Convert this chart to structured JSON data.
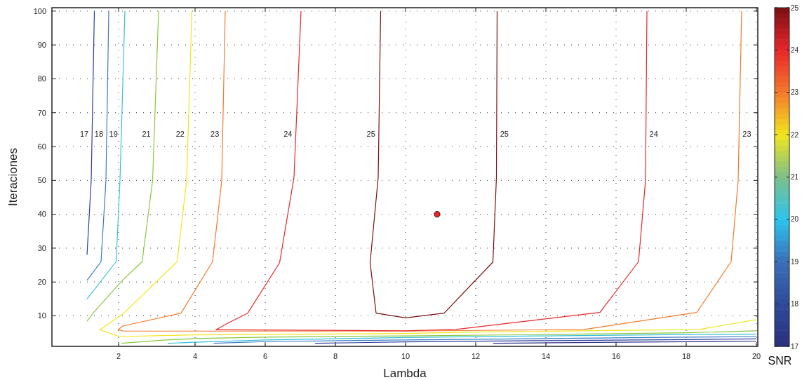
{
  "chart_data": {
    "type": "line",
    "xlabel": "Lambda",
    "ylabel": "Iteraciones",
    "clabel": "SNR",
    "xlim": [
      -0.08,
      20.04
    ],
    "ylim": [
      1,
      101
    ],
    "xticks": [
      {
        "value": 1.82,
        "label": "2"
      },
      4,
      6,
      8,
      10,
      12,
      14,
      16,
      18,
      20
    ],
    "yticks": [
      10,
      20,
      30,
      40,
      50,
      60,
      70,
      80,
      90,
      100
    ],
    "clim": [
      17,
      25
    ],
    "cticks": [
      17,
      18,
      19,
      20,
      21,
      22,
      23,
      24,
      25
    ],
    "grid": true,
    "line_style": "solid",
    "marker": "none",
    "series": [
      {
        "name": "17",
        "color": "#2b3f9b",
        "x": [
          1.13,
          1.04,
          0.92,
          null,
          7.42,
          10,
          14,
          18,
          20
        ],
        "values": [
          100,
          50,
          28,
          null,
          1.9,
          2.3,
          2.7,
          3.0,
          3.2
        ]
      },
      {
        "color": "#2e2f86",
        "x": [
          12.5,
          16,
          20
        ],
        "values": [
          1.9,
          2.2,
          2.5
        ]
      },
      {
        "name": "18",
        "color": "#3d79c4",
        "x": [
          1.54,
          1.46,
          1.32,
          0.92,
          null,
          4.53,
          6,
          10,
          14,
          18,
          20
        ],
        "values": [
          100,
          50,
          26,
          20.5,
          null,
          1.9,
          2.4,
          2.9,
          3.3,
          3.7,
          3.9
        ]
      },
      {
        "name": "19",
        "color": "#39c0d6",
        "x": [
          2.0,
          1.86,
          1.75,
          0.92,
          null,
          3.22,
          4,
          6,
          10,
          14,
          18,
          20
        ],
        "values": [
          100,
          50,
          26,
          15,
          null,
          1.9,
          2.2,
          2.9,
          3.6,
          4.1,
          4.5,
          4.6
        ]
      },
      {
        "name": "21",
        "color": "#8cc63f",
        "x": [
          2.96,
          2.79,
          2.49,
          1.93,
          1.1,
          0.92,
          null,
          1.9,
          3,
          4,
          6,
          10,
          14,
          18,
          20
        ],
        "values": [
          100,
          50,
          26,
          20.5,
          10.9,
          8.4,
          null,
          1.9,
          2.8,
          3.3,
          3.7,
          4.1,
          4.5,
          5.0,
          5.6
        ]
      },
      {
        "name": "22",
        "color": "#f2e51d",
        "x": [
          3.91,
          3.76,
          3.49,
          1.97,
          1.29,
          1.84,
          4,
          10,
          12,
          18.37,
          20
        ],
        "values": [
          100,
          50,
          26,
          10.8,
          5.9,
          3.9,
          4.4,
          4.8,
          5.2,
          6.0,
          8.9
        ]
      },
      {
        "name": "23",
        "color": "#f47a2b",
        "x": [
          4.86,
          4.76,
          4.5,
          3.6,
          1.94,
          1.81,
          1.97,
          10,
          15.1,
          18.3,
          19.28,
          19.48,
          19.58
        ],
        "values": [
          100,
          50,
          26,
          10.8,
          7.0,
          5.9,
          5.5,
          5.5,
          6.0,
          11,
          26,
          50,
          100
        ]
      },
      {
        "name": "24",
        "color": "#e8262a",
        "x": [
          7.02,
          6.82,
          6.41,
          5.5,
          4.94,
          4.6,
          4.7,
          10,
          11.44,
          15.54,
          16.64,
          16.84,
          16.88
        ],
        "values": [
          100,
          50.9,
          25.7,
          10.8,
          7.9,
          5.9,
          5.9,
          5.6,
          6.0,
          11,
          26,
          50,
          100
        ]
      },
      {
        "name": "25",
        "color": "#7b0f12",
        "x": [
          9.29,
          9.22,
          8.99,
          9.16,
          10.0,
          11.1,
          12.49,
          12.59,
          12.61
        ],
        "values": [
          100,
          50.9,
          25.7,
          10.8,
          9.4,
          10.8,
          25.9,
          50.9,
          100
        ]
      },
      {
        "type": "scatter",
        "marker": "circle",
        "color": "#e8262a",
        "x": [
          10.9
        ],
        "values": [
          40
        ]
      }
    ]
  }
}
